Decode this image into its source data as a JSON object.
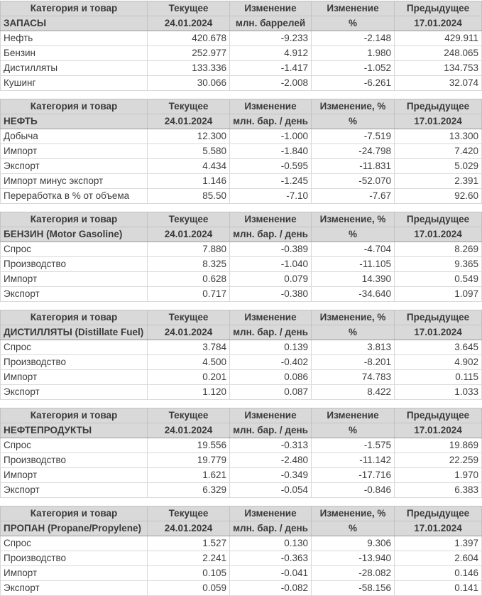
{
  "colors": {
    "negative": "#dd0000",
    "positive": "#00a532",
    "header_background": "#d9d9d9",
    "text": "#3d3d3d"
  },
  "tables": [
    {
      "id": "stocks",
      "headers": {
        "category": "Категория и товар",
        "current": "Текущее",
        "change": "Изменение",
        "change_pct": "Изменение",
        "previous": "Предыдущее"
      },
      "subheader": {
        "title": "ЗАПАСЫ",
        "current_date": "24.01.2024",
        "unit": "млн. баррелей",
        "pct_symbol": "%",
        "previous_date": "17.01.2024"
      },
      "rows": [
        {
          "category": "Нефть",
          "current": "420.678",
          "change": "-9.233",
          "change_pct": "-2.148",
          "previous": "429.911"
        },
        {
          "category": "Бензин",
          "current": "252.977",
          "change": "4.912",
          "change_pct": "1.980",
          "previous": "248.065"
        },
        {
          "category": "Дистилляты",
          "current": "133.336",
          "change": "-1.417",
          "change_pct": "-1.052",
          "previous": "134.753"
        },
        {
          "category": "Кушинг",
          "current": "30.066",
          "change": "-2.008",
          "change_pct": "-6.261",
          "previous": "32.074"
        }
      ]
    },
    {
      "id": "oil",
      "headers": {
        "category": "Категория и товар",
        "current": "Текущее",
        "change": "Изменение",
        "change_pct": "Изменение, %",
        "previous": "Предыдущее"
      },
      "subheader": {
        "title": "НЕФТЬ",
        "current_date": "24.01.2024",
        "unit": "млн. бар. / день",
        "pct_symbol": "%",
        "previous_date": "17.01.2024"
      },
      "rows": [
        {
          "category": "Добыча",
          "current": "12.300",
          "change": "-1.000",
          "change_pct": "-7.519",
          "previous": "13.300"
        },
        {
          "category": "Импорт",
          "current": "5.580",
          "change": "-1.840",
          "change_pct": "-24.798",
          "previous": "7.420"
        },
        {
          "category": "Экспорт",
          "current": "4.434",
          "change": "-0.595",
          "change_pct": "-11.831",
          "previous": "5.029"
        },
        {
          "category": "Импорт минус экспорт",
          "current": "1.146",
          "change": "-1.245",
          "change_pct": "-52.070",
          "previous": "2.391"
        },
        {
          "category": "Переработка в % от объема",
          "current": "85.50",
          "change": "-7.10",
          "change_pct": "-7.67",
          "previous": "92.60"
        }
      ]
    },
    {
      "id": "gasoline",
      "headers": {
        "category": "Категория и товар",
        "current": "Текущее",
        "change": "Изменение",
        "change_pct": "Изменение, %",
        "previous": "Предыдущее"
      },
      "subheader": {
        "title": "БЕНЗИН (Motor Gasoline)",
        "current_date": "24.01.2024",
        "unit": "млн. бар. / день",
        "pct_symbol": "%",
        "previous_date": "17.01.2024"
      },
      "rows": [
        {
          "category": "Спрос",
          "current": "7.880",
          "change": "-0.389",
          "change_pct": "-4.704",
          "previous": "8.269"
        },
        {
          "category": "Производство",
          "current": "8.325",
          "change": "-1.040",
          "change_pct": "-11.105",
          "previous": "9.365"
        },
        {
          "category": "Импорт",
          "current": "0.628",
          "change": "0.079",
          "change_pct": "14.390",
          "previous": "0.549"
        },
        {
          "category": "Экспорт",
          "current": "0.717",
          "change": "-0.380",
          "change_pct": "-34.640",
          "previous": "1.097"
        }
      ]
    },
    {
      "id": "distillates",
      "headers": {
        "category": "Категория и товар",
        "current": "Текущее",
        "change": "Изменение",
        "change_pct": "Изменение, %",
        "previous": "Предыдущее"
      },
      "subheader": {
        "title": "ДИСТИЛЛЯТЫ (Distillate Fuel)",
        "current_date": "24.01.2024",
        "unit": "млн. бар. / день",
        "pct_symbol": "%",
        "previous_date": "17.01.2024"
      },
      "rows": [
        {
          "category": "Спрос",
          "current": "3.784",
          "change": "0.139",
          "change_pct": "3.813",
          "previous": "3.645"
        },
        {
          "category": "Производство",
          "current": "4.500",
          "change": "-0.402",
          "change_pct": "-8.201",
          "previous": "4.902"
        },
        {
          "category": "Импорт",
          "current": "0.201",
          "change": "0.086",
          "change_pct": "74.783",
          "previous": "0.115"
        },
        {
          "category": "Экспорт",
          "current": "1.120",
          "change": "0.087",
          "change_pct": "8.422",
          "previous": "1.033"
        }
      ]
    },
    {
      "id": "petroleum-products",
      "headers": {
        "category": "Категория и товар",
        "current": "Текущее",
        "change": "Изменение",
        "change_pct": "Изменение",
        "previous": "Предыдущее"
      },
      "subheader": {
        "title": "НЕФТЕПРОДУКТЫ",
        "current_date": "24.01.2024",
        "unit": "млн. бар. / день",
        "pct_symbol": "%",
        "previous_date": "17.01.2024"
      },
      "rows": [
        {
          "category": "Спрос",
          "current": "19.556",
          "change": "-0.313",
          "change_pct": "-1.575",
          "previous": "19.869"
        },
        {
          "category": "Производство",
          "current": "19.779",
          "change": "-2.480",
          "change_pct": "-11.142",
          "previous": "22.259"
        },
        {
          "category": "Импорт",
          "current": "1.621",
          "change": "-0.349",
          "change_pct": "-17.716",
          "previous": "1.970"
        },
        {
          "category": "Экспорт",
          "current": "6.329",
          "change": "-0.054",
          "change_pct": "-0.846",
          "previous": "6.383"
        }
      ]
    },
    {
      "id": "propane",
      "headers": {
        "category": "Категория и товар",
        "current": "Текущее",
        "change": "Изменение",
        "change_pct": "Изменение, %",
        "previous": "Предыдущее"
      },
      "subheader": {
        "title": "ПРОПАН (Propane/Propylene)",
        "current_date": "24.01.2024",
        "unit": "млн. бар. / день",
        "pct_symbol": "%",
        "previous_date": "17.01.2024"
      },
      "rows": [
        {
          "category": "Спрос",
          "current": "1.527",
          "change": "0.130",
          "change_pct": "9.306",
          "previous": "1.397"
        },
        {
          "category": "Производство",
          "current": "2.241",
          "change": "-0.363",
          "change_pct": "-13.940",
          "previous": "2.604"
        },
        {
          "category": "Импорт",
          "current": "0.105",
          "change": "-0.041",
          "change_pct": "-28.082",
          "previous": "0.146"
        },
        {
          "category": "Экспорт",
          "current": "0.059",
          "change": "-0.082",
          "change_pct": "-58.156",
          "previous": "0.141"
        }
      ]
    }
  ]
}
